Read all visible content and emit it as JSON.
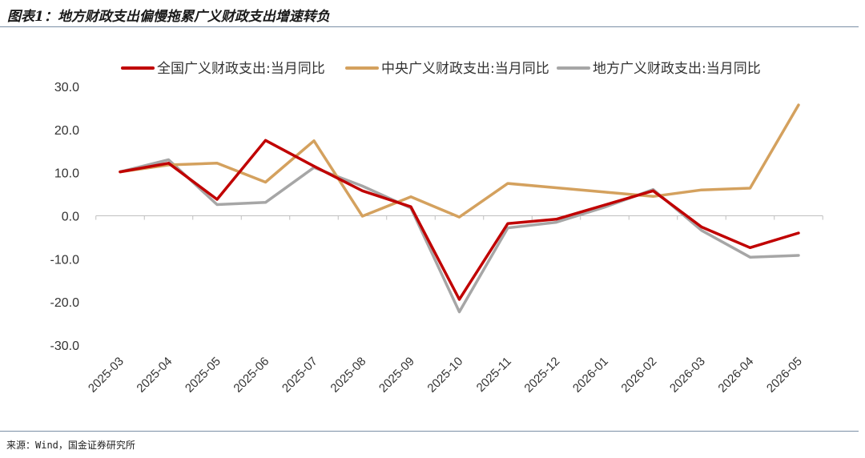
{
  "figure": {
    "title": "图表1：地方财政支出偏慢拖累广义财政支出增速转负",
    "source": "来源：Wind，国金证券研究所"
  },
  "chart_data": {
    "type": "line",
    "categories": [
      "2025-03",
      "2025-04",
      "2025-05",
      "2025-06",
      "2025-07",
      "2025-08",
      "2025-09",
      "2025-10",
      "2025-11",
      "2025-12",
      "2026-01",
      "2026-02",
      "2026-03",
      "2026-04",
      "2026-05"
    ],
    "ylim": [
      -30,
      30
    ],
    "yticks": [
      30,
      20,
      10,
      0,
      -10,
      -20,
      -30
    ],
    "ytick_labels": [
      "30.0",
      "20.0",
      "10.0",
      "0.0",
      "-10.0",
      "-20.0",
      "-30.0"
    ],
    "grid": false,
    "legend_position": "top",
    "series": [
      {
        "name": "全国广义财政支出:当月同比",
        "color": "#C00000",
        "values": [
          10.2,
          12.2,
          3.8,
          17.5,
          11.5,
          5.8,
          2.1,
          -19.4,
          -1.8,
          -0.8,
          2.5,
          5.8,
          -2.6,
          -7.4,
          -4.0
        ]
      },
      {
        "name": "中央广义财政支出:当月同比",
        "color": "#D4A15E",
        "values": [
          10.2,
          11.8,
          12.2,
          7.8,
          17.4,
          -0.1,
          4.4,
          -0.3,
          7.5,
          6.5,
          5.5,
          4.5,
          6.0,
          6.4,
          25.7
        ]
      },
      {
        "name": "地方广义财政支出:当月同比",
        "color": "#A6A6A6",
        "values": [
          10.2,
          13.0,
          2.6,
          3.1,
          11.2,
          6.9,
          1.8,
          -22.3,
          -2.8,
          -1.5,
          2.0,
          6.1,
          -3.4,
          -9.6,
          -9.2
        ]
      }
    ]
  }
}
